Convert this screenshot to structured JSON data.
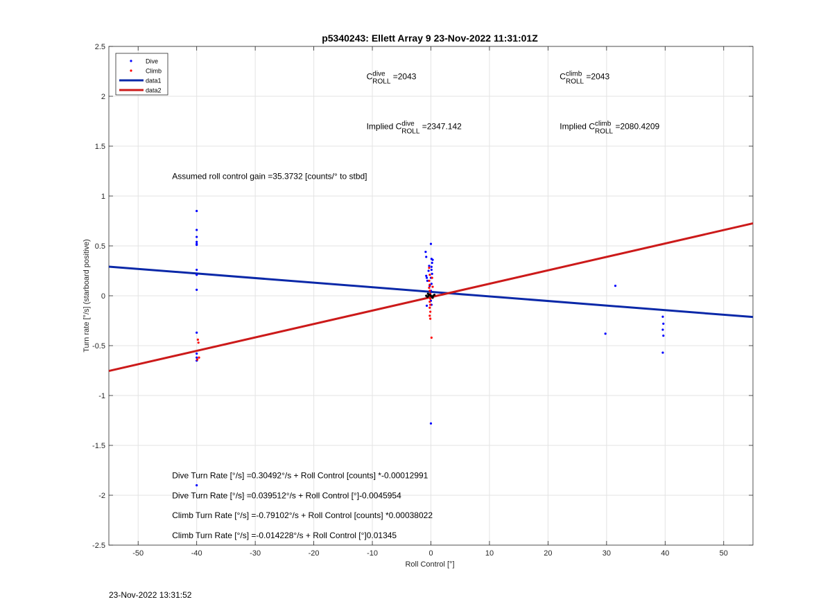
{
  "chart_data": {
    "type": "scatter",
    "title": "p5340243: Ellett Array 9 23-Nov-2022 11:31:01Z",
    "xlabel": "Roll Control [°]",
    "ylabel": "Turn rate [°/s] (starboard positive)",
    "xlim": [
      -55,
      55
    ],
    "ylim": [
      -2.5,
      2.5
    ],
    "xticks": [
      -50,
      -40,
      -30,
      -20,
      -10,
      0,
      10,
      20,
      30,
      40,
      50
    ],
    "yticks": [
      -2.5,
      -2,
      -1.5,
      -1,
      -0.5,
      0,
      0.5,
      1,
      1.5,
      2,
      2.5
    ],
    "grid": true,
    "legend": {
      "placement": "top-left",
      "entries": [
        {
          "label": "Dive",
          "kind": "marker",
          "color": "#0000ff"
        },
        {
          "label": "Climb",
          "kind": "marker",
          "color": "#ff0000"
        },
        {
          "label": "data1",
          "kind": "line",
          "color": "#0a28a8"
        },
        {
          "label": "data2",
          "kind": "line",
          "color": "#cc1a1a"
        }
      ]
    },
    "series": [
      {
        "name": "Dive",
        "kind": "scatter",
        "color": "#0000ff",
        "points": [
          [
            -40,
            0.85
          ],
          [
            -40,
            0.66
          ],
          [
            -40,
            0.59
          ],
          [
            -40,
            0.54
          ],
          [
            -40,
            0.52
          ],
          [
            -40,
            0.51
          ],
          [
            -40,
            0.26
          ],
          [
            -40,
            0.21
          ],
          [
            -40,
            0.06
          ],
          [
            -40,
            -0.37
          ],
          [
            -40,
            -0.58
          ],
          [
            -40,
            -0.62
          ],
          [
            -40,
            -0.65
          ],
          [
            -40,
            -1.9
          ],
          [
            -0.9,
            0.44
          ],
          [
            -0.8,
            0.39
          ],
          [
            -0.8,
            0.2
          ],
          [
            -0.7,
            0.18
          ],
          [
            -0.6,
            0.15
          ],
          [
            -0.7,
            -0.1
          ],
          [
            -0.4,
            0.25
          ],
          [
            -0.3,
            0.3
          ],
          [
            -0.2,
            0.1
          ],
          [
            0,
            0.52
          ],
          [
            0.1,
            0.37
          ],
          [
            0.3,
            0.36
          ],
          [
            0.2,
            0.33
          ],
          [
            0.1,
            0.29
          ],
          [
            0.1,
            0.26
          ],
          [
            0.2,
            0.22
          ],
          [
            0,
            0.18
          ],
          [
            0.1,
            0.12
          ],
          [
            0,
            0.05
          ],
          [
            0,
            -0.05
          ],
          [
            0.1,
            -0.09
          ],
          [
            0,
            -1.28
          ],
          [
            29.8,
            -0.38
          ],
          [
            31.5,
            0.1
          ],
          [
            39.6,
            -0.21
          ],
          [
            39.7,
            -0.28
          ],
          [
            39.6,
            -0.34
          ],
          [
            39.7,
            -0.4
          ],
          [
            39.6,
            -0.57
          ]
        ]
      },
      {
        "name": "Climb",
        "kind": "scatter",
        "color": "#ff0000",
        "points": [
          [
            -39.8,
            -0.44
          ],
          [
            -39.7,
            -0.47
          ],
          [
            -39.6,
            -0.62
          ],
          [
            -39.9,
            -0.64
          ],
          [
            -0.3,
            0.28
          ],
          [
            -0.2,
            0.21
          ],
          [
            -0.3,
            0.15
          ],
          [
            -0.2,
            0.11
          ],
          [
            -0.3,
            0.08
          ],
          [
            -0.2,
            0.05
          ],
          [
            -0.1,
            0.02
          ],
          [
            -0.1,
            -0.03
          ],
          [
            -0.2,
            -0.06
          ],
          [
            -0.1,
            -0.09
          ],
          [
            -0.2,
            -0.12
          ],
          [
            -0.1,
            -0.16
          ],
          [
            -0.2,
            -0.2
          ],
          [
            -0.1,
            -0.23
          ],
          [
            0.1,
            -0.42
          ],
          [
            0.2,
            0.18
          ],
          [
            0.3,
            0.09
          ],
          [
            0.2,
            -0.01
          ]
        ]
      },
      {
        "name": "data1",
        "kind": "line",
        "color": "#0a28a8",
        "x": [
          -55,
          55
        ],
        "y": [
          0.292,
          -0.213
        ]
      },
      {
        "name": "data2",
        "kind": "line",
        "color": "#cc1a1a",
        "x": [
          -55,
          55
        ],
        "y": [
          -0.754,
          0.726
        ]
      }
    ],
    "cluster_dark": {
      "color": "#000000",
      "points": [
        [
          -0.8,
          0.0
        ],
        [
          -0.6,
          -0.01
        ],
        [
          -0.4,
          0.0
        ],
        [
          -0.2,
          0.01
        ],
        [
          0,
          0.0
        ],
        [
          0.2,
          -0.01
        ],
        [
          0.4,
          0.0
        ],
        [
          0.6,
          0.01
        ],
        [
          -0.5,
          0.02
        ],
        [
          0.3,
          -0.02
        ]
      ]
    },
    "annotations": [
      {
        "id": "cdive",
        "x": -11,
        "y": 2.17,
        "prefix": "C",
        "sup": "dive",
        "sub": "ROLL",
        "suffix": " =2043"
      },
      {
        "id": "cclimb",
        "x": 22,
        "y": 2.17,
        "prefix": "C",
        "sup": "climb",
        "sub": "ROLL",
        "suffix": " =2043"
      },
      {
        "id": "idive",
        "x": -11,
        "y": 1.67,
        "prefix": "Implied C",
        "sup": "dive",
        "sub": "ROLL",
        "suffix": " =2347.142"
      },
      {
        "id": "iclimb",
        "x": 22,
        "y": 1.67,
        "prefix": "Implied C",
        "sup": "climb",
        "sub": "ROLL",
        "suffix": " =2080.4209"
      },
      {
        "id": "gain",
        "x": -44.2,
        "y": 1.17,
        "text": "Assumed roll control gain =35.3732 [counts/° to stbd]"
      },
      {
        "id": "eq1",
        "x": -44.2,
        "y": -1.83,
        "text": "Dive Turn Rate [°/s] =0.30492°/s + Roll Control [counts] *-0.00012991"
      },
      {
        "id": "eq2",
        "x": -44.2,
        "y": -2.03,
        "text": "Dive Turn Rate [°/s] =0.039512°/s + Roll Control [°]-0.0045954"
      },
      {
        "id": "eq3",
        "x": -44.2,
        "y": -2.23,
        "text": "Climb Turn Rate [°/s] =-0.79102°/s + Roll Control [counts] *0.00038022"
      },
      {
        "id": "eq4",
        "x": -44.2,
        "y": -2.43,
        "text": "Climb Turn Rate [°/s] =-0.014228°/s + Roll Control [°]0.01345"
      }
    ]
  },
  "footer": {
    "timestamp": "23-Nov-2022 13:31:52"
  }
}
